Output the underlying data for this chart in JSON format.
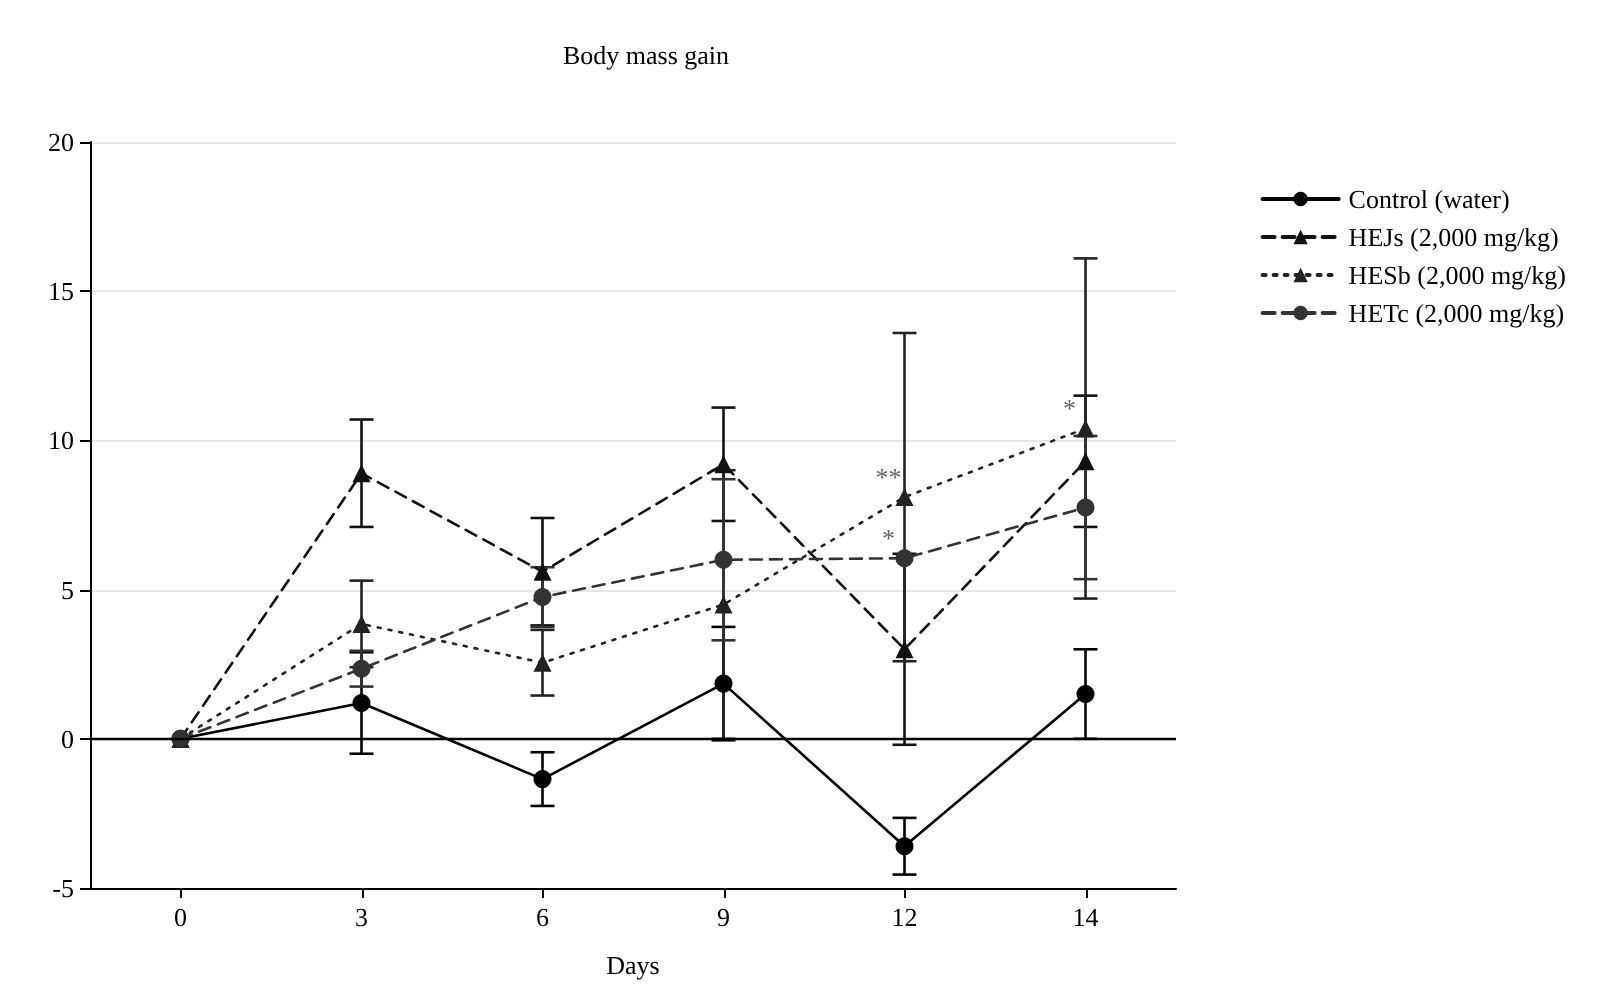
{
  "chart_data": {
    "type": "line",
    "title": "Body mass gain",
    "xlabel": "Days",
    "categories": [
      "0",
      "3",
      "6",
      "9",
      "12",
      "14"
    ],
    "series": [
      {
        "name": "Control (water)",
        "color": "#000000",
        "marker": "circle",
        "line_style": "solid",
        "values": [
          0,
          1.2,
          -1.35,
          1.85,
          -3.6,
          1.5
        ],
        "errors": [
          null,
          1.7,
          0.9,
          1.9,
          0.95,
          1.5
        ]
      },
      {
        "name": "HEJs (2,000 mg/kg)",
        "color": "#111111",
        "marker": "triangle",
        "line_style": "dashed",
        "values": [
          0,
          8.9,
          5.6,
          9.2,
          3.0,
          9.3
        ],
        "errors": [
          null,
          1.8,
          1.8,
          1.9,
          3.2,
          2.2
        ]
      },
      {
        "name": "HESb (2,000 mg/kg)",
        "color": "#222222",
        "marker": "triangle",
        "line_style": "dotted",
        "values": [
          0,
          3.85,
          2.55,
          4.5,
          8.1,
          10.4
        ],
        "errors": [
          null,
          1.45,
          1.1,
          4.5,
          5.5,
          5.7
        ]
      },
      {
        "name": "HETc (2,000 mg/kg)",
        "color": "#333333",
        "marker": "circle",
        "line_style": "dashed",
        "values": [
          0,
          2.35,
          4.75,
          6.0,
          6.05,
          7.75
        ],
        "errors": [
          null,
          0.6,
          1.0,
          2.7,
          null,
          2.4
        ]
      }
    ],
    "ylim": [
      -5,
      20
    ],
    "yticks": [
      -5,
      0,
      5,
      10,
      15,
      20
    ],
    "grid": "y",
    "legend": "right",
    "ref_lines": [
      {
        "axis": "y",
        "value": 0,
        "color": "#000000"
      }
    ],
    "annotations": [
      {
        "text": "**",
        "x": "12",
        "y": 8.1
      },
      {
        "text": "*",
        "x": "12",
        "y": 6.05
      },
      {
        "text": "*",
        "x": "14",
        "y": 10.4
      }
    ]
  }
}
